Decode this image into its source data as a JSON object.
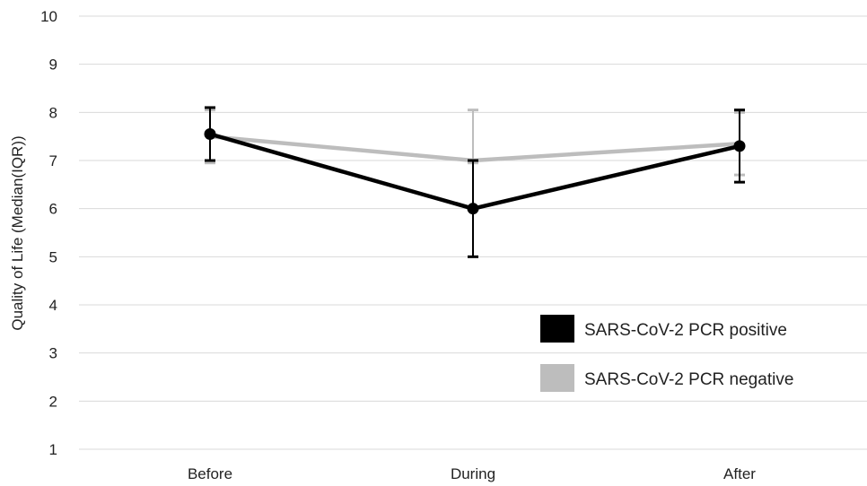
{
  "chart_data": {
    "type": "line",
    "title": "",
    "xlabel": "",
    "ylabel": "Quality of Life (Median(IQR))",
    "categories": [
      "Before",
      "During",
      "After"
    ],
    "ylim": [
      1,
      10
    ],
    "yticks": [
      "1",
      "2",
      "3",
      "4",
      "5",
      "6",
      "7",
      "8",
      "9",
      "10"
    ],
    "grid": "horizontal",
    "legend_position": "bottom-right",
    "series": [
      {
        "name": "SARS-CoV-2 PCR negative",
        "color": "#bdbdbd",
        "values": [
          7.5,
          7.0,
          7.35
        ],
        "err_low": [
          6.95,
          6.95,
          6.7
        ],
        "err_high": [
          8.05,
          8.05,
          8.0
        ],
        "markers": false
      },
      {
        "name": "SARS-CoV-2 PCR positive",
        "color": "#000000",
        "values": [
          7.55,
          6.0,
          7.3
        ],
        "err_low": [
          7.0,
          5.0,
          6.55
        ],
        "err_high": [
          8.1,
          7.0,
          8.05
        ],
        "markers": true
      }
    ],
    "legend": [
      "SARS-CoV-2 PCR positive",
      "SARS-CoV-2 PCR negative"
    ]
  }
}
